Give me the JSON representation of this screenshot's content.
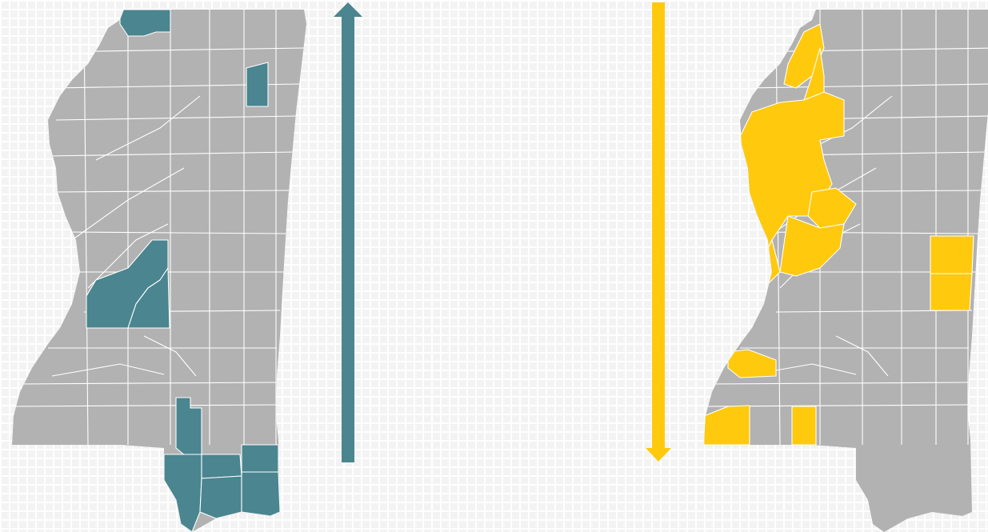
{
  "colors": {
    "background": "#f3f3f3",
    "gridline": "#ffffff",
    "county_base": "#b2b2b2",
    "county_border": "#ffffff",
    "increase": "#4a8590",
    "decrease": "#ffc90e"
  },
  "panels": [
    {
      "id": "increase",
      "arrow_direction": "up",
      "arrow_color": "#4a8590",
      "highlight_color": "#4a8590",
      "highlighted_regions": [
        "northwest-border",
        "north-central",
        "yazoo-madison",
        "pearl-river-corridor",
        "gulf-coast-southeast"
      ]
    },
    {
      "id": "decrease",
      "arrow_direction": "down",
      "arrow_color": "#ffc90e",
      "highlight_color": "#ffc90e",
      "highlighted_regions": [
        "delta-north",
        "delta-center",
        "delta-south",
        "holmes-attala",
        "east-central-border",
        "southwest-jefferson",
        "southwest-wilkinson",
        "southwest-walthall"
      ]
    }
  ]
}
